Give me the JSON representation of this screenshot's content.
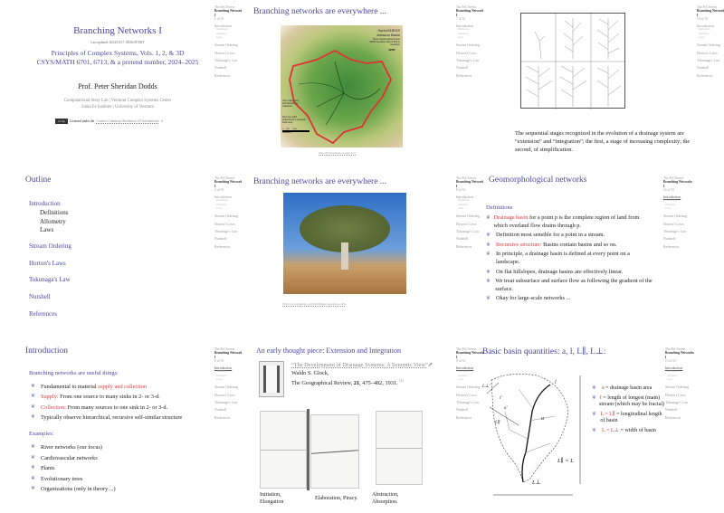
{
  "sidebar": {
    "course": "The PoCSverse",
    "deck": "Branching Networks I",
    "sections": [
      "Introduction",
      "Stream Ordering",
      "Horton's Laws",
      "Tokunaga's Law",
      "Nutshell",
      "References"
    ],
    "subsections": [
      "Definitions",
      "Allometry",
      "Laws"
    ],
    "pages": [
      "1 of 53",
      "7 of 53",
      "10 of 53",
      "2 of 53",
      "8 of 53",
      "12 of 53",
      "6 of 53",
      "9 of 53",
      "13 of 53"
    ]
  },
  "s1": {
    "title": "Branching Networks I",
    "updated": "Last updated: 2024/10/17, 08:56:09 EDT",
    "subtitle1": "Principles of Complex Systems, Vols. 1, 2, & 3D",
    "subtitle2": "CSYS/MATH 6701, 6713, & a pretend number, 2024–2025",
    "author": "Prof. Peter Sheridan Dodds",
    "aff1a": "Computational Story Lab",
    "aff1b": "Vermont Complex Systems Center",
    "aff2a": "Santa Fe Institute",
    "aff2b": "University of Vermont",
    "sep": "|",
    "license_prefix": "Licensed under the",
    "license_link": "Creative Commons Attribution 4.0 International",
    "cc_badge": "cc by"
  },
  "s2": {
    "title": "Branching networks are everywhere ...",
    "map_title": "HydroSHEDS",
    "map_sub": "Amazon Basin",
    "map_note": "River network derived from SRTM elevation data at 500 m resolution",
    "map_legend1": "Only major rivers and streams are visualized",
    "map_legend2": "River line width proportional to upstream basin area",
    "scale_ticks": [
      "0",
      "500",
      "1000"
    ],
    "scale_unit": "Kilometers",
    "wwf": "WWF",
    "url": "http://hydrosheds.cr.usgs.gov/"
  },
  "s3": {
    "caption": "The sequential stages recognized in the evolution of a drainage system are “extension” and “integration”; the first, a stage of increasing complexity; the second, of simplification."
  },
  "s4": {
    "title": "Outline",
    "items": [
      "Introduction",
      "Stream Ordering",
      "Horton's Laws",
      "Tokunaga's Law",
      "Nutshell",
      "References"
    ],
    "subitems": [
      "Definitions",
      "Allometry",
      "Laws"
    ]
  },
  "s5": {
    "title": "Branching networks are everywhere ...",
    "url": "http://en.wikipedia.org/wiki/Image:Applebox.JPG"
  },
  "s6": {
    "title": "Geomorphological networks",
    "heading": "Definitions",
    "b1_red": "Drainage basin",
    "b1_rest": " for a point p is the complete region of land from which overland flow drains through p.",
    "b2": "Definition most sensible for a point in a stream.",
    "b3_red": "Recursive structure:",
    "b3_rest": " Basins contain basins and so on.",
    "b4": "In principle, a drainage basin is defined at every point on a landscape.",
    "b5": "On flat hillslopes, drainage basins are effectively linear.",
    "b6": "We treat subsurface and surface flow as following the gradient of the surface.",
    "b7": "Okay for large-scale networks ..."
  },
  "s7": {
    "title": "Introduction",
    "heading1": "Branching networks are useful things:",
    "b1": "Fundamental to material ",
    "b1_red": "supply and collection",
    "b2_red": "Supply:",
    "b2": " From one source to many sinks in 2- or 3-d.",
    "b3_red": "Collection:",
    "b3": " From many sources to one sink in 2- or 3-d.",
    "b4": "Typically observe hierarchical, recursive self-similar structure",
    "heading2": "Examples:",
    "examples": [
      "River networks (our focus)",
      "Cardiovascular networks",
      "Plants",
      "Evolutionary trees",
      "Organizations (only in theory ...)"
    ]
  },
  "s8": {
    "title": "An early thought piece: Extension and Integration",
    "paper_title": "“The Development of Drainage Systems: A Synoptic View”",
    "author": "Waldo S. Glock,",
    "journal": "The Geographical Review, ",
    "volume": "21",
    "pages": ", 475–482, 1931. ",
    "ref": "[2]",
    "cap1a": "Initiation,",
    "cap1b": "Elongation",
    "cap2": "Elaboration, Piracy.",
    "cap3a": "Abstraction,",
    "cap3b": "Absorption."
  },
  "s9": {
    "title": "Basic basin quantities: a, l, L∥, L⊥:",
    "b1_red": "a",
    "b1": " = drainage basin area",
    "b2_red": "ℓ",
    "b2": " = length of longest (main) stream (which may be fractal)",
    "b3_red": "L = L∥",
    "b3": " = longitudinal length of basin",
    "b4_red": "L = L⊥",
    "b4": " = width of basin",
    "lbl_l": "l",
    "lbl_a": "a",
    "lbl_a2": "a'",
    "lbl_l2": "l'",
    "lbl_Lpar": "L∥ = L",
    "lbl_Lperp": "L⊥",
    "lbl_Lpar2": "L∥'",
    "lbl_Lperp2": "L⊥'"
  },
  "colors": {
    "title": "#4b46a3",
    "emphasis": "#e8383d",
    "bullet": "#8a86c8"
  }
}
